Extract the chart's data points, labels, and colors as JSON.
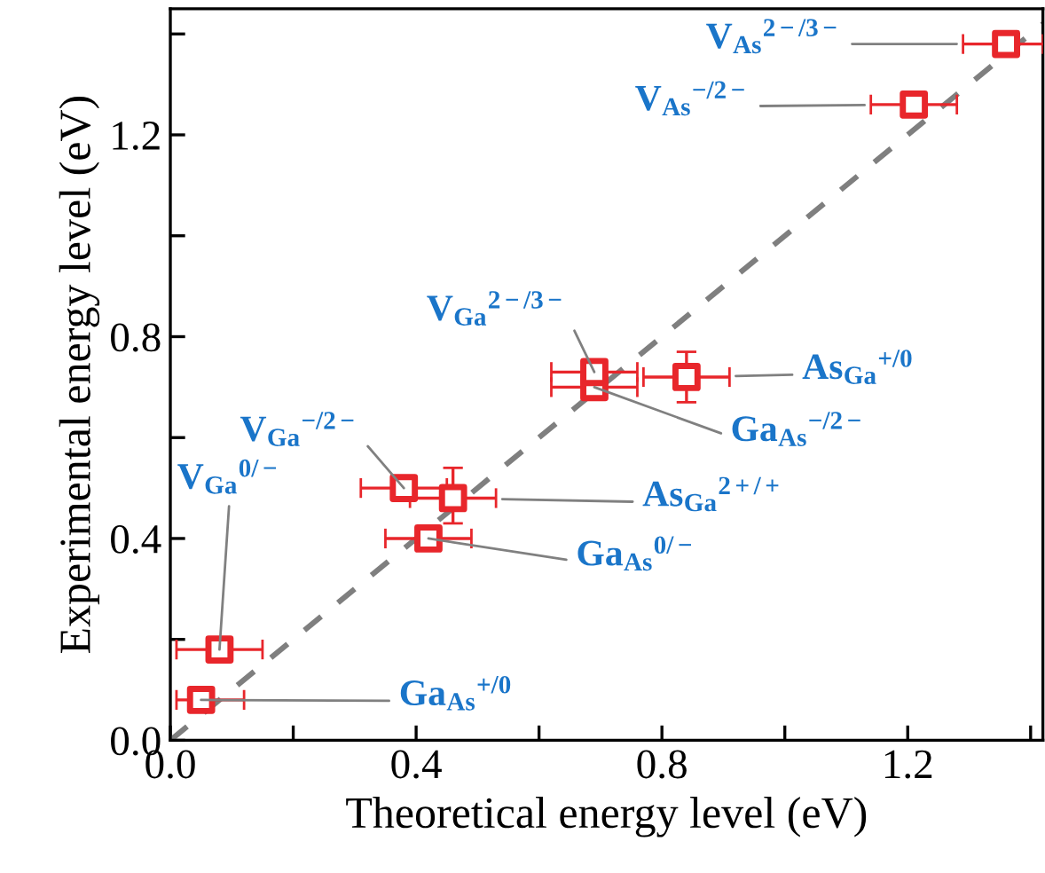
{
  "chart_data": {
    "type": "scatter",
    "xlabel": "Theoretical energy level (eV)",
    "ylabel": "Experimental energy level (eV)",
    "xlim": [
      0,
      1.42
    ],
    "ylim": [
      0,
      1.45
    ],
    "xticks": [
      {
        "value": 0,
        "label": "0.0"
      },
      {
        "value": 0.2,
        "label": null
      },
      0.4,
      {
        "value": 0.6,
        "label": null
      },
      0.8,
      {
        "value": 1.0,
        "label": null
      },
      1.2,
      {
        "value": 1.4,
        "label": null
      }
    ],
    "yticks": [
      {
        "value": 0,
        "label": "0.0"
      },
      {
        "value": 0.2,
        "label": null
      },
      0.4,
      {
        "value": 0.6,
        "label": null
      },
      0.8,
      {
        "value": 1.0,
        "label": null
      },
      1.2,
      {
        "value": 1.4,
        "label": null
      }
    ],
    "grid": false,
    "legend": false,
    "marker": "square",
    "series": [
      {
        "type": "scatter",
        "color": "#e8262b",
        "x": [
          0.05,
          0.08,
          0.42,
          0.38,
          0.46,
          0.69,
          0.69,
          0.84,
          1.21,
          1.36
        ],
        "values": [
          0.08,
          0.18,
          0.4,
          0.5,
          0.48,
          0.7,
          0.73,
          0.72,
          1.26,
          1.38
        ],
        "xerrors": [
          [
            0.01,
            0.12
          ],
          [
            0.01,
            0.15
          ],
          [
            0.35,
            0.49
          ],
          [
            0.31,
            0.45
          ],
          [
            0.39,
            0.53
          ],
          [
            0.62,
            0.76
          ],
          [
            0.62,
            0.76
          ],
          [
            0.77,
            0.91
          ],
          [
            1.14,
            1.28
          ],
          [
            1.29,
            1.42
          ]
        ],
        "errors": [
          null,
          null,
          null,
          null,
          [
            0.43,
            0.54
          ],
          null,
          null,
          [
            0.67,
            0.77
          ],
          null,
          null
        ]
      },
      {
        "type": "line",
        "color": "#7f7f7f",
        "line_style": "dashed",
        "marker": "none",
        "x": [
          0,
          1.42
        ],
        "values": [
          0,
          1.42
        ]
      }
    ],
    "annotations": [
      {
        "text": "Ga$_{As}$$^{+/0}$",
        "x": 0.05,
        "y": 0.08
      },
      {
        "text": "V$_{Ga}$$^{0/−}$",
        "x": 0.08,
        "y": 0.18
      },
      {
        "text": "Ga$_{As}$$^{0/−}$",
        "x": 0.42,
        "y": 0.4
      },
      {
        "text": "V$_{Ga}$$^{−/2−}$",
        "x": 0.38,
        "y": 0.5
      },
      "As$_{Ga}$$^{2+/+}$",
      {
        "text": "Ga$_{As}$$^{−/2−}$",
        "x": 0.69,
        "y": 0.7
      },
      {
        "text": "V$_{Ga}$$^{2−/3−}$",
        "x": 0.69,
        "y": 0.73
      },
      "As$_{Ga}$$^{+/0}$",
      "V$_{As}$$^{−/2−}$",
      "V$_{As}$$^{2−/3−}$"
    ]
  }
}
